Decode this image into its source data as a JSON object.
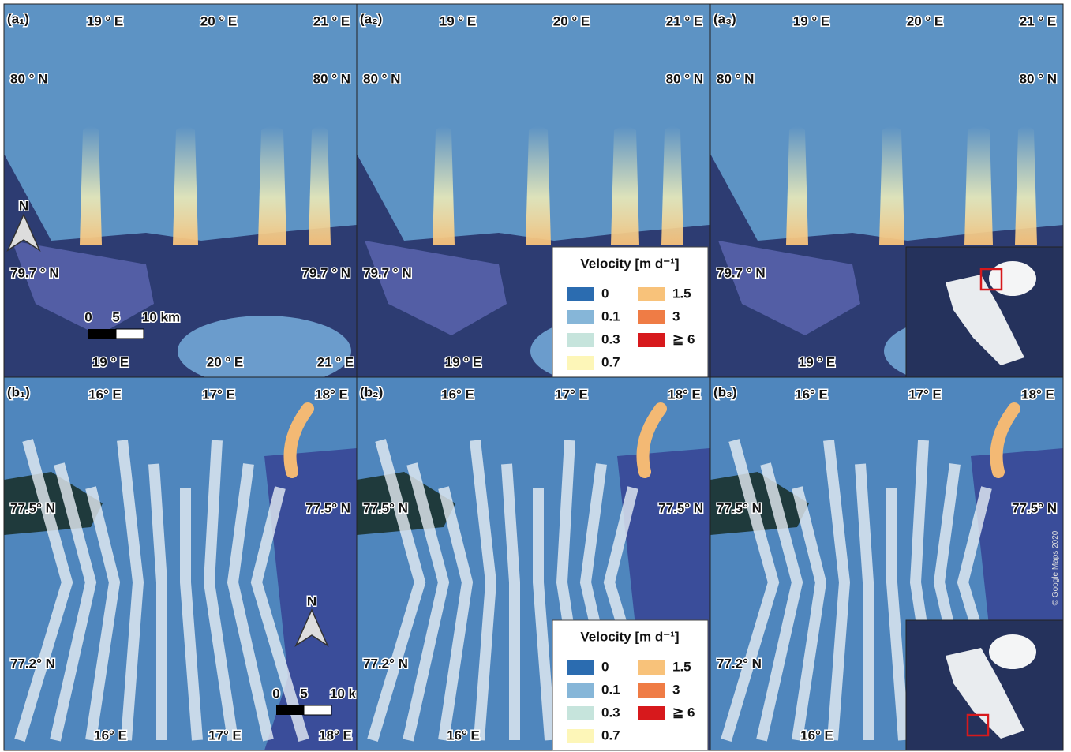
{
  "panels": [
    {
      "label": "(a₁)",
      "top_lon": [
        "19 ° E",
        "20 ° E",
        "21 ° E"
      ],
      "left_lat": [
        "80 ° N",
        "79.7 ° N"
      ],
      "right_lat": [
        "80 ° N",
        "79.7 ° N"
      ],
      "bottom_lon": [
        "19 ° E",
        "20 ° E",
        "21 ° E"
      ]
    },
    {
      "label": "(a₂)",
      "top_lon": [
        "19 ° E",
        "20 ° E",
        "21 ° E"
      ],
      "left_lat": [
        "80 ° N",
        "79.7 ° N"
      ],
      "right_lat": [
        "80 ° N"
      ],
      "bottom_lon": [
        "19 ° E"
      ]
    },
    {
      "label": "(a₃)",
      "top_lon": [
        "19 ° E",
        "20 ° E",
        "21 ° E"
      ],
      "left_lat": [
        "80 ° N",
        "79.7 ° N"
      ],
      "right_lat": [
        "80 ° N"
      ],
      "bottom_lon": [
        "19 ° E"
      ]
    },
    {
      "label": "(b₁)",
      "top_lon": [
        "16° E",
        "17° E",
        "18° E"
      ],
      "left_lat": [
        "77.5° N",
        "77.2° N"
      ],
      "right_lat": [
        "77.5° N"
      ],
      "bottom_lon": [
        "16° E",
        "17° E",
        "18° E"
      ]
    },
    {
      "label": "(b₂)",
      "top_lon": [
        "16° E",
        "17° E",
        "18° E"
      ],
      "left_lat": [
        "77.5° N",
        "77.2° N"
      ],
      "right_lat": [
        "77.5° N"
      ],
      "bottom_lon": [
        "16° E"
      ]
    },
    {
      "label": "(b₃)",
      "top_lon": [
        "16° E",
        "17° E",
        "18° E"
      ],
      "left_lat": [
        "77.5° N",
        "77.2° N"
      ],
      "right_lat": [
        "77.5° N"
      ],
      "bottom_lon": [
        "16° E"
      ]
    }
  ],
  "legend": {
    "title": "Velocity [m d⁻¹]",
    "items": [
      {
        "label": "0",
        "color": "#2b6cb0"
      },
      {
        "label": "0.1",
        "color": "#86b6d8"
      },
      {
        "label": "0.3",
        "color": "#c6e4dc"
      },
      {
        "label": "0.7",
        "color": "#fdf6b8"
      },
      {
        "label": "1.5",
        "color": "#f8c27a"
      },
      {
        "label": "3",
        "color": "#ef7c45"
      },
      {
        "label": "≧ 6",
        "color": "#d7191c"
      }
    ]
  },
  "scale_bar": [
    "0",
    "5",
    "10 km"
  ],
  "north": "N",
  "credit": "© Google Maps 2020"
}
